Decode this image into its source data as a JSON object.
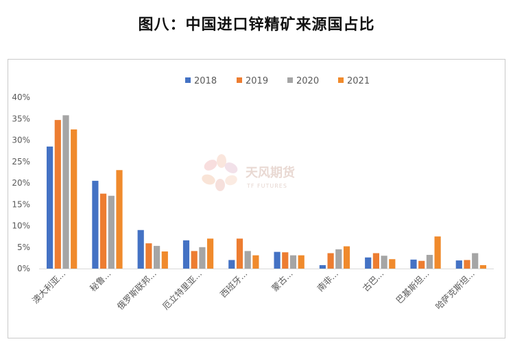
{
  "title": "图八：中国进口锌精矿来源国占比",
  "watermark": {
    "brand": "天风期货",
    "sub": "TF FUTURES"
  },
  "colors": {
    "s2018": "#4472C4",
    "s2019": "#ED7D31",
    "s2020": "#A5A5A5",
    "s2021": "#F08A2C",
    "axis": "#d9d9d9",
    "text": "#595959"
  },
  "chart_data": {
    "type": "bar",
    "title": "图八：中国进口锌精矿来源国占比",
    "categories": [
      "澳大利亚...",
      "秘鲁...",
      "俄罗斯联邦...",
      "厄立特里亚...",
      "西班牙...",
      "蒙古...",
      "南非...",
      "古巴...",
      "巴基斯坦...",
      "哈萨克斯坦..."
    ],
    "series": [
      {
        "name": "2018",
        "values": [
          0.285,
          0.205,
          0.09,
          0.066,
          0.02,
          0.039,
          0.008,
          0.026,
          0.021,
          0.019
        ]
      },
      {
        "name": "2019",
        "values": [
          0.347,
          0.175,
          0.059,
          0.041,
          0.07,
          0.038,
          0.036,
          0.036,
          0.018,
          0.02
        ]
      },
      {
        "name": "2020",
        "values": [
          0.358,
          0.17,
          0.053,
          0.05,
          0.041,
          0.031,
          0.045,
          0.03,
          0.032,
          0.036
        ]
      },
      {
        "name": "2021",
        "values": [
          0.325,
          0.23,
          0.04,
          0.07,
          0.031,
          0.031,
          0.052,
          0.022,
          0.075,
          0.008
        ]
      }
    ],
    "yticks": [
      "0%",
      "5%",
      "10%",
      "15%",
      "20%",
      "25%",
      "30%",
      "35%",
      "40%"
    ],
    "ylim": [
      0,
      0.4
    ],
    "xlabel": "",
    "ylabel": "",
    "grid": false,
    "legend_position": "top-center"
  }
}
